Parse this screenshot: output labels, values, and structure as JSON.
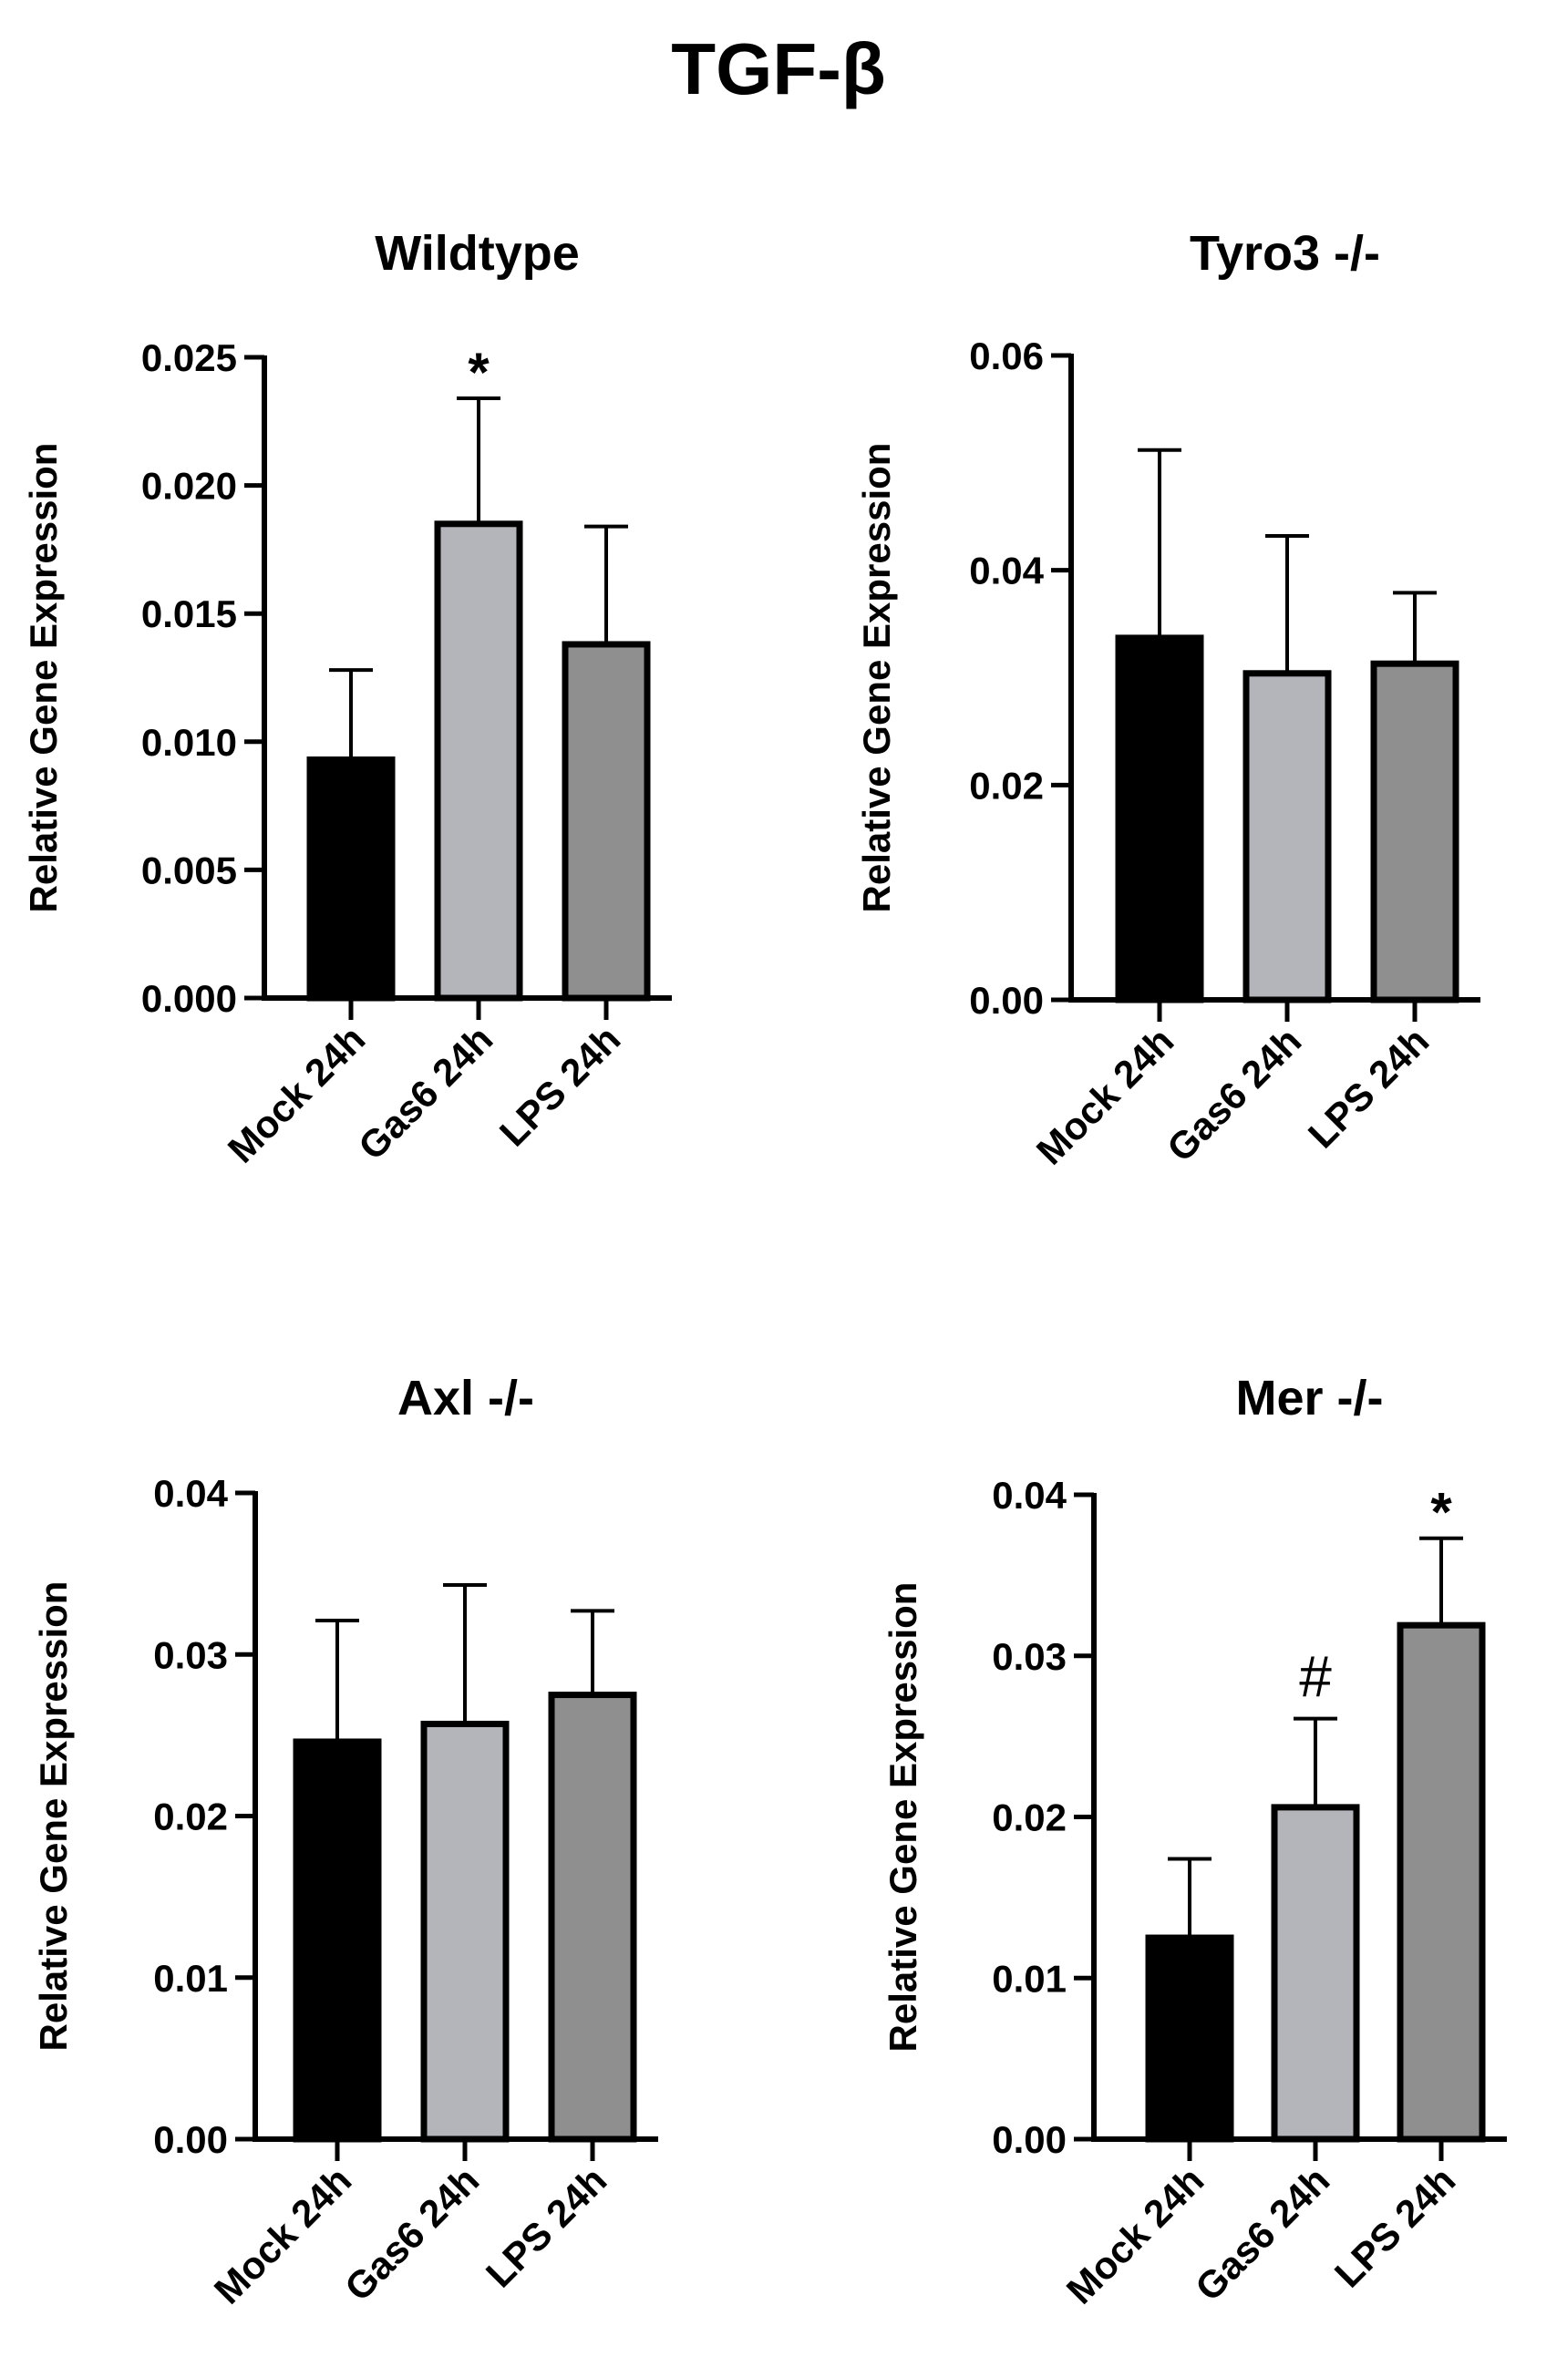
{
  "figure_title": "TGF-β",
  "colors": {
    "Mock 24h": "#000000",
    "Gas6 24h": "#b4b4bb",
    "LPS 24h": "#8f8f8f",
    "axis": "#000000"
  },
  "chart_data": [
    {
      "type": "bar",
      "title": "Wildtype",
      "ylabel": "Relative Gene Expression",
      "xlabel": "",
      "categories": [
        "Mock 24h",
        "Gas6 24h",
        "LPS 24h"
      ],
      "values": [
        0.0093,
        0.0185,
        0.0138
      ],
      "error_upper": [
        0.0128,
        0.0234,
        0.0184
      ],
      "annotations": [
        "",
        "*",
        ""
      ],
      "ylim": [
        0,
        0.025
      ],
      "yticks": [
        "0.000",
        "0.005",
        "0.010",
        "0.015",
        "0.020",
        "0.025"
      ],
      "grid": false
    },
    {
      "type": "bar",
      "title": "Tyro3 -/-",
      "ylabel": "Relative Gene Expression",
      "xlabel": "",
      "categories": [
        "Mock 24h",
        "Gas6 24h",
        "LPS 24h"
      ],
      "values": [
        0.0337,
        0.0304,
        0.0313
      ],
      "error_upper": [
        0.0512,
        0.0432,
        0.0379
      ],
      "annotations": [
        "",
        "",
        ""
      ],
      "ylim": [
        0,
        0.06
      ],
      "yticks": [
        "0.00",
        "0.02",
        "0.04",
        "0.06"
      ],
      "grid": false
    },
    {
      "type": "bar",
      "title": "Axl -/-",
      "ylabel": "Relative Gene Expression",
      "xlabel": "",
      "categories": [
        "Mock 24h",
        "Gas6 24h",
        "LPS 24h"
      ],
      "values": [
        0.0246,
        0.0257,
        0.0275
      ],
      "error_upper": [
        0.0321,
        0.0343,
        0.0327
      ],
      "annotations": [
        "",
        "",
        ""
      ],
      "ylim": [
        0,
        0.04
      ],
      "yticks": [
        "0.00",
        "0.01",
        "0.02",
        "0.03",
        "0.04"
      ],
      "grid": false
    },
    {
      "type": "bar",
      "title": "Mer -/-",
      "ylabel": "Relative Gene Expression",
      "xlabel": "",
      "categories": [
        "Mock 24h",
        "Gas6 24h",
        "LPS 24h"
      ],
      "values": [
        0.0125,
        0.0206,
        0.0319
      ],
      "error_upper": [
        0.0174,
        0.0261,
        0.0373
      ],
      "annotations": [
        "",
        "#",
        "*"
      ],
      "ylim": [
        0,
        0.04
      ],
      "yticks": [
        "0.00",
        "0.01",
        "0.02",
        "0.03",
        "0.04"
      ],
      "grid": false
    }
  ]
}
